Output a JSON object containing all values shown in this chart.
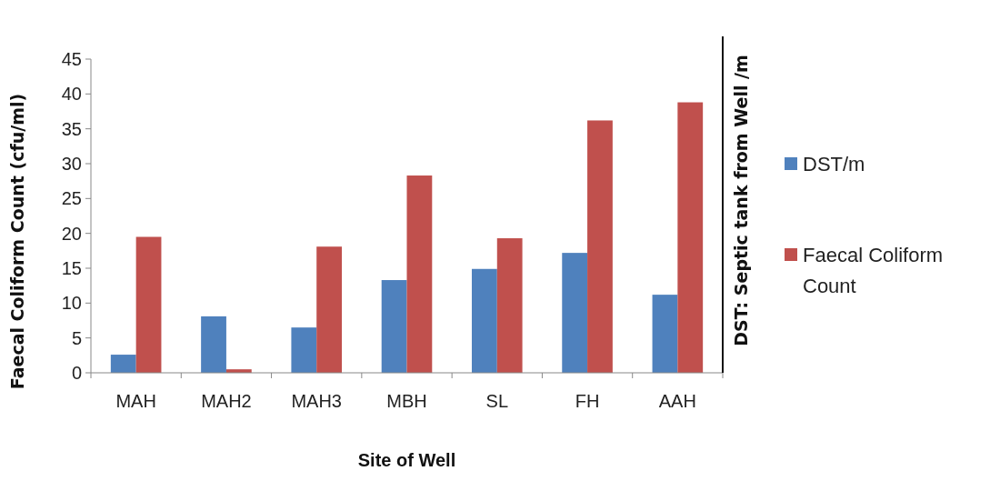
{
  "chart_data": {
    "type": "bar",
    "xlabel": "Site of Well",
    "ylabel": "Faecal Coliform Count (cfu/ml)",
    "y2label": "DST: Septic tank from Well /m",
    "categories": [
      "MAH",
      "MAH2",
      "MAH3",
      "MBH",
      "SL",
      "FH",
      "AAH"
    ],
    "series": [
      {
        "name": "DST/m",
        "color": "#4f81bd",
        "values": [
          2.6,
          8.1,
          6.5,
          13.3,
          14.9,
          17.2,
          11.2
        ]
      },
      {
        "name": "Faecal Coliform Count",
        "color": "#c0504d",
        "values": [
          19.5,
          0.5,
          18.1,
          28.3,
          19.3,
          36.2,
          38.8
        ]
      }
    ],
    "ylim": [
      0,
      45
    ],
    "yticks": [
      0,
      5,
      10,
      15,
      20,
      25,
      30,
      35,
      40,
      45
    ],
    "grid": false,
    "legend": "right"
  }
}
